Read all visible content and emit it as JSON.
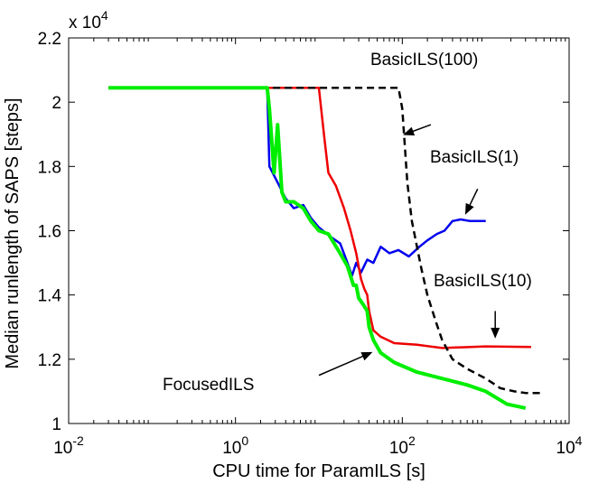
{
  "chart_data": {
    "type": "line",
    "xlabel": "CPU time for ParamILS [s]",
    "ylabel": "Median runlength of SAPS [steps]",
    "xscale": "log",
    "xlim": [
      0.01,
      10000
    ],
    "ylim": [
      10000,
      22000
    ],
    "y_multiplier": "x 10^4",
    "grid": false,
    "legend": "none",
    "x_ticks": [
      {
        "value": 0.01,
        "base": "10",
        "exp": "-2"
      },
      {
        "value": 1,
        "base": "10",
        "exp": "0"
      },
      {
        "value": 100,
        "base": "10",
        "exp": "2"
      },
      {
        "value": 10000,
        "base": "10",
        "exp": "4"
      }
    ],
    "y_ticks": [
      {
        "value": 10000,
        "label": "1"
      },
      {
        "value": 12000,
        "label": "1.2"
      },
      {
        "value": 14000,
        "label": "1.4"
      },
      {
        "value": 16000,
        "label": "1.6"
      },
      {
        "value": 18000,
        "label": "1.8"
      },
      {
        "value": 20000,
        "label": "2"
      },
      {
        "value": 22000,
        "label": "2.2"
      }
    ],
    "multiplier_label": {
      "prefix": "x 10",
      "exp": "4"
    },
    "series": [
      {
        "color": "#0000ee",
        "style": "solid",
        "points": [
          [
            0.03,
            20450
          ],
          [
            2.4,
            20450
          ],
          [
            2.55,
            18000
          ],
          [
            3.2,
            17500
          ],
          [
            4,
            17000
          ],
          [
            5,
            16700
          ],
          [
            6.5,
            16800
          ],
          [
            8,
            16400
          ],
          [
            10,
            16100
          ],
          [
            14,
            15800
          ],
          [
            18,
            15600
          ],
          [
            22,
            15000
          ],
          [
            25,
            14600
          ],
          [
            28,
            15000
          ],
          [
            32,
            14700
          ],
          [
            38,
            15100
          ],
          [
            45,
            15000
          ],
          [
            55,
            15500
          ],
          [
            70,
            15300
          ],
          [
            90,
            15400
          ],
          [
            120,
            15200
          ],
          [
            160,
            15500
          ],
          [
            200,
            15700
          ],
          [
            260,
            15900
          ],
          [
            320,
            16000
          ],
          [
            400,
            16300
          ],
          [
            500,
            16350
          ],
          [
            650,
            16300
          ],
          [
            800,
            16300
          ],
          [
            1000,
            16300
          ]
        ]
      },
      {
        "color": "#ee0000",
        "style": "solid",
        "points": [
          [
            0.03,
            20450
          ],
          [
            10,
            20450
          ],
          [
            11.5,
            19000
          ],
          [
            13,
            17800
          ],
          [
            16,
            17400
          ],
          [
            20,
            16700
          ],
          [
            24,
            16000
          ],
          [
            28,
            15300
          ],
          [
            32,
            14500
          ],
          [
            35,
            14200
          ],
          [
            38,
            14000
          ],
          [
            40,
            13500
          ],
          [
            45,
            12900
          ],
          [
            55,
            12700
          ],
          [
            80,
            12500
          ],
          [
            150,
            12450
          ],
          [
            300,
            12350
          ],
          [
            1000,
            12400
          ],
          [
            3500,
            12380
          ]
        ]
      },
      {
        "color": "#000000",
        "style": "dashed",
        "points": [
          [
            0.03,
            20450
          ],
          [
            90,
            20450
          ],
          [
            100,
            19800
          ],
          [
            115,
            17500
          ],
          [
            130,
            16300
          ],
          [
            150,
            15500
          ],
          [
            170,
            14800
          ],
          [
            200,
            14000
          ],
          [
            250,
            13200
          ],
          [
            300,
            12600
          ],
          [
            400,
            12000
          ],
          [
            600,
            11700
          ],
          [
            1000,
            11400
          ],
          [
            1500,
            11100
          ],
          [
            2200,
            11000
          ],
          [
            3000,
            10950
          ],
          [
            5000,
            10950
          ]
        ]
      },
      {
        "color": "#00ee00",
        "style": "solid",
        "points": [
          [
            0.03,
            20450
          ],
          [
            2.4,
            20450
          ],
          [
            2.55,
            19800
          ],
          [
            2.9,
            17800
          ],
          [
            3.2,
            19300
          ],
          [
            3.6,
            17200
          ],
          [
            4,
            16900
          ],
          [
            5,
            16900
          ],
          [
            6.5,
            16700
          ],
          [
            8,
            16300
          ],
          [
            10,
            16000
          ],
          [
            13,
            15900
          ],
          [
            17,
            15400
          ],
          [
            22,
            14900
          ],
          [
            26,
            14300
          ],
          [
            28,
            14300
          ],
          [
            30,
            13900
          ],
          [
            34,
            13700
          ],
          [
            38,
            13500
          ],
          [
            40,
            13000
          ],
          [
            45,
            12600
          ],
          [
            55,
            12200
          ],
          [
            80,
            11900
          ],
          [
            150,
            11600
          ],
          [
            300,
            11400
          ],
          [
            600,
            11200
          ],
          [
            1000,
            11000
          ],
          [
            1800,
            10600
          ],
          [
            3000,
            10480
          ]
        ]
      }
    ],
    "annotations": [
      {
        "text": "BasicILS(100)",
        "tail_data": [
          220,
          19300
        ],
        "head_data": [
          107,
          19000
        ]
      },
      {
        "text": "BasicILS(1)",
        "tail_data": [
          800,
          17300
        ],
        "head_data": [
          580,
          16550
        ]
      },
      {
        "text": "BasicILS(10)",
        "tail_data": [
          1300,
          13500
        ],
        "head_data": [
          1300,
          12700
        ]
      },
      {
        "text": "FocusedILS",
        "tail_data": [
          10,
          11500
        ],
        "head_data": [
          42,
          12200
        ]
      }
    ]
  }
}
